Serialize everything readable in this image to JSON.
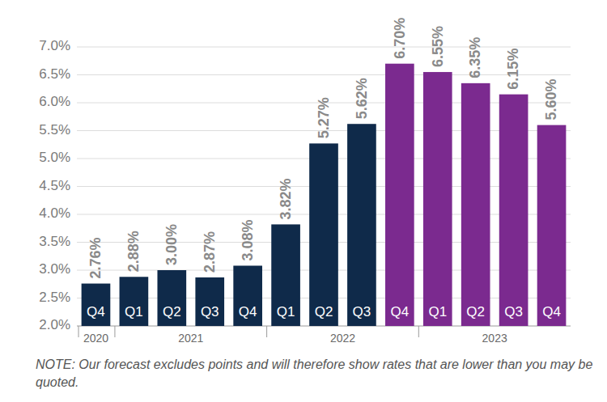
{
  "chart_data": {
    "type": "bar",
    "categories": [
      "Q4",
      "Q1",
      "Q2",
      "Q3",
      "Q4",
      "Q1",
      "Q2",
      "Q3",
      "Q4",
      "Q1",
      "Q2",
      "Q3",
      "Q4"
    ],
    "values": [
      2.76,
      2.88,
      3.0,
      2.87,
      3.08,
      3.82,
      5.27,
      5.62,
      6.7,
      6.55,
      6.35,
      6.15,
      5.6
    ],
    "value_labels": [
      "2.76%",
      "2.88%",
      "3.00%",
      "2.87%",
      "3.08%",
      "3.82%",
      "5.27%",
      "5.62%",
      "6.70%",
      "6.55%",
      "6.35%",
      "6.15%",
      "5.60%"
    ],
    "colors": [
      "#0f2a4a",
      "#0f2a4a",
      "#0f2a4a",
      "#0f2a4a",
      "#0f2a4a",
      "#0f2a4a",
      "#0f2a4a",
      "#0f2a4a",
      "#7b2a8f",
      "#7b2a8f",
      "#7b2a8f",
      "#7b2a8f",
      "#7b2a8f"
    ],
    "groups": [
      {
        "label": "2020",
        "count": 1
      },
      {
        "label": "2021",
        "count": 4
      },
      {
        "label": "2022",
        "count": 4
      },
      {
        "label": "2023",
        "count": 4
      }
    ],
    "ylim": [
      2,
      7
    ],
    "yticks": [
      {
        "value": 2,
        "label": "2.0%"
      },
      {
        "value": 2.5,
        "label": "2.5%"
      },
      {
        "value": 3,
        "label": "3.0%"
      },
      {
        "value": 3.5,
        "label": "3.5%"
      },
      {
        "value": 4,
        "label": "4.0%"
      },
      {
        "value": 4.5,
        "label": "4.5%"
      },
      {
        "value": 5,
        "label": "5.0%"
      },
      {
        "value": 5.5,
        "label": "5.5%"
      },
      {
        "value": 6,
        "label": "6.0%"
      },
      {
        "value": 6.5,
        "label": "6.5%"
      },
      {
        "value": 7,
        "label": "7.0%"
      }
    ],
    "grid": true,
    "data_labels": true,
    "note": "NOTE: Our forecast excludes points and will therefore show rates that are lower than you may be quoted."
  }
}
